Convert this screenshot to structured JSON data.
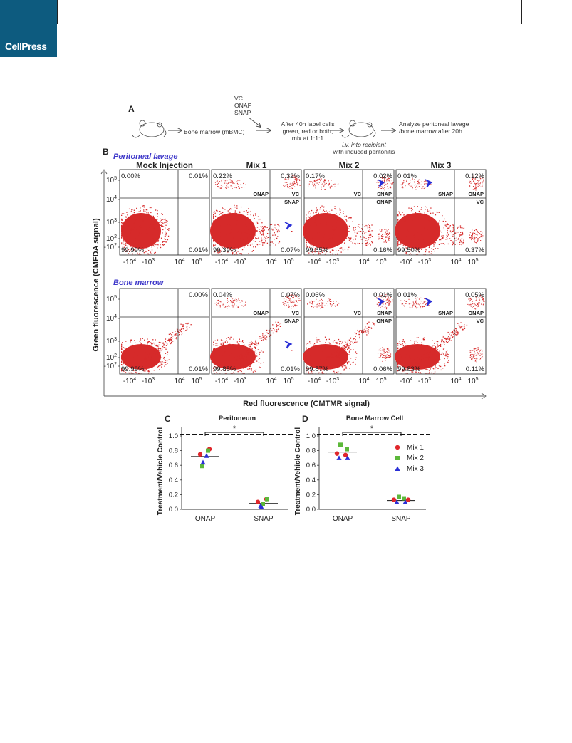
{
  "header": {
    "brand": "CellPress"
  },
  "panel_a": {
    "label": "A",
    "treatments": [
      "VC",
      "ONAP",
      "SNAP"
    ],
    "step1": "Bone marrow (mBMC)",
    "step2_lines": [
      "After 40h label cells",
      "green, red or both,",
      "mix at 1:1:1"
    ],
    "step3_lines": [
      "i.v. into recipient",
      "with induced peritonitis"
    ],
    "step4_lines": [
      "Analyze peritoneal lavage",
      "/bone marrow after 20h."
    ]
  },
  "panel_b": {
    "label": "B",
    "row_titles": [
      "Peritoneal lavage",
      "Bone marrow"
    ],
    "column_titles": [
      "Mock Injection",
      "Mix 1",
      "Mix 2",
      "Mix 3"
    ],
    "y_axis_label": "Green fluorescence (CMFDA signal)",
    "x_axis_label": "Red fluorescence  (CMTMR signal)",
    "y_ticks": [
      "10^5",
      "10^4",
      "10^3",
      "10^2",
      "-10^2"
    ],
    "x_ticks": [
      "-10^4",
      "-10^3",
      "10^4",
      "10^5"
    ],
    "plots": [
      {
        "row": 0,
        "col": 0,
        "ul": "0.00%",
        "ur": "0.01%",
        "ll": "99.99%",
        "lr": "0.01%",
        "gates": {}
      },
      {
        "row": 0,
        "col": 1,
        "ul": "0.22%",
        "ur": "0.32%",
        "ll": "99.39%",
        "lr": "0.07%",
        "gates": {
          "ul": "ONAP",
          "ur_bottom": "VC",
          "lr_top": "SNAP"
        },
        "arrow": "lr"
      },
      {
        "row": 0,
        "col": 2,
        "ul": "0.17%",
        "ur": "0.02%",
        "ll": "99.65%",
        "lr": "0.16%",
        "gates": {
          "ul": "VC",
          "ur_bottom": "SNAP",
          "lr_top": "ONAP"
        },
        "arrow": "ur"
      },
      {
        "row": 0,
        "col": 3,
        "ul": "0.01%",
        "ur": "0.12%",
        "ll": "99.50%",
        "lr": "0.37%",
        "gates": {
          "ul": "SNAP",
          "ur_bottom": "ONAP",
          "lr_top": "VC"
        },
        "arrow": "ul"
      },
      {
        "row": 1,
        "col": 0,
        "ul": "",
        "ur": "0.00%",
        "ll": "99.99%",
        "lr": "0.01%",
        "gates": {}
      },
      {
        "row": 1,
        "col": 1,
        "ul": "0.04%",
        "ur": "0.07%",
        "ll": "99.88%",
        "lr": "0.01%",
        "gates": {
          "ul": "ONAP",
          "ur_bottom": "VC",
          "lr_top": "SNAP"
        },
        "arrow": "lr"
      },
      {
        "row": 1,
        "col": 2,
        "ul": "0.06%",
        "ur": "0.01%",
        "ll": "99.87%",
        "lr": "0.06%",
        "gates": {
          "ul": "VC",
          "ur_bottom": "SNAP",
          "lr_top": "ONAP"
        },
        "arrow": "ur"
      },
      {
        "row": 1,
        "col": 3,
        "ul": "0.01%",
        "ur": "0.05%",
        "ll": "99.83%",
        "lr": "0.11%",
        "gates": {
          "ul": "SNAP",
          "ur_bottom": "ONAP",
          "lr_top": "VC"
        },
        "arrow": "ul"
      }
    ]
  },
  "chart_data": [
    {
      "type": "scatter",
      "panel_label": "C",
      "title": "Peritoneum",
      "ylabel": "Treatment/Vehicle Control",
      "categories": [
        "ONAP",
        "SNAP"
      ],
      "ylim": [
        0,
        1.0
      ],
      "yticks": [
        "0.0",
        "0.2",
        "0.4",
        "0.6",
        "0.8",
        "1.0"
      ],
      "reference_line": 1.02,
      "significance": "*",
      "means": [
        0.72,
        0.08
      ],
      "series": [
        {
          "name": "Mix 1",
          "marker": "circle",
          "color": "#e0262b",
          "values": [
            0.82,
            0.14
          ]
        },
        {
          "name": "Mix 2",
          "marker": "square",
          "color": "#5cb83a",
          "values": [
            0.59,
            0.14
          ]
        },
        {
          "name": "Mix 3",
          "marker": "triangle",
          "color": "#2a2fd6",
          "values": [
            0.64,
            0.03
          ]
        },
        {
          "name": "Mix 1",
          "marker": "circle",
          "color": "#e0262b",
          "values": [
            0.75,
            0.1
          ]
        },
        {
          "name": "Mix 2",
          "marker": "square",
          "color": "#5cb83a",
          "values": [
            0.8,
            0.07
          ]
        },
        {
          "name": "Mix 3",
          "marker": "triangle",
          "color": "#2a2fd6",
          "values": [
            0.73,
            0.05
          ]
        }
      ]
    },
    {
      "type": "scatter",
      "panel_label": "D",
      "title": "Bone Marrow Cell",
      "ylabel": "Treatment/Vehicle Control",
      "categories": [
        "ONAP",
        "SNAP"
      ],
      "ylim": [
        0,
        1.0
      ],
      "yticks": [
        "0.0",
        "0.2",
        "0.4",
        "0.6",
        "0.8",
        "1.0"
      ],
      "reference_line": 1.02,
      "significance": "*",
      "means": [
        0.78,
        0.12
      ],
      "legend": [
        {
          "name": "Mix 1",
          "marker": "circle",
          "color": "#e0262b"
        },
        {
          "name": "Mix 2",
          "marker": "square",
          "color": "#5cb83a"
        },
        {
          "name": "Mix 3",
          "marker": "triangle",
          "color": "#2a2fd6"
        }
      ],
      "points": [
        {
          "cat": "ONAP",
          "marker": "circle",
          "color": "#e0262b",
          "value": 0.76,
          "dx": -8
        },
        {
          "cat": "ONAP",
          "marker": "circle",
          "color": "#e0262b",
          "value": 0.74,
          "dx": 4
        },
        {
          "cat": "ONAP",
          "marker": "square",
          "color": "#5cb83a",
          "value": 0.88,
          "dx": -3
        },
        {
          "cat": "ONAP",
          "marker": "square",
          "color": "#5cb83a",
          "value": 0.82,
          "dx": 6
        },
        {
          "cat": "ONAP",
          "marker": "triangle",
          "color": "#2a2fd6",
          "value": 0.7,
          "dx": -5
        },
        {
          "cat": "ONAP",
          "marker": "triangle",
          "color": "#2a2fd6",
          "value": 0.7,
          "dx": 7
        },
        {
          "cat": "SNAP",
          "marker": "circle",
          "color": "#e0262b",
          "value": 0.13,
          "dx": -10
        },
        {
          "cat": "SNAP",
          "marker": "circle",
          "color": "#e0262b",
          "value": 0.13,
          "dx": 10
        },
        {
          "cat": "SNAP",
          "marker": "square",
          "color": "#5cb83a",
          "value": 0.17,
          "dx": -3
        },
        {
          "cat": "SNAP",
          "marker": "square",
          "color": "#5cb83a",
          "value": 0.15,
          "dx": 4
        },
        {
          "cat": "SNAP",
          "marker": "triangle",
          "color": "#2a2fd6",
          "value": 0.1,
          "dx": -6
        },
        {
          "cat": "SNAP",
          "marker": "triangle",
          "color": "#2a2fd6",
          "value": 0.1,
          "dx": 6
        }
      ]
    }
  ]
}
